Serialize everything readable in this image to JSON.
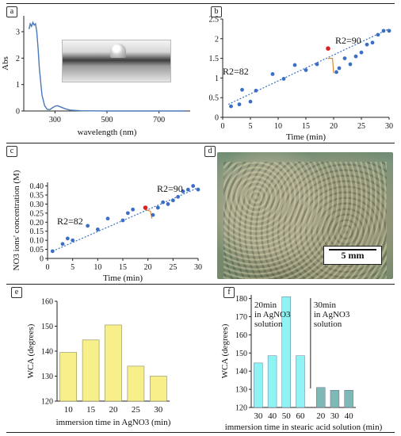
{
  "panels": {
    "a": {
      "tag": "a"
    },
    "b": {
      "tag": "b"
    },
    "c": {
      "tag": "c"
    },
    "d": {
      "tag": "d",
      "scale_label": "5 mm"
    },
    "e": {
      "tag": "e"
    },
    "f": {
      "tag": "f"
    }
  },
  "chart_data": [
    {
      "panel": "a",
      "type": "line",
      "xlabel": "wavelength (nm)",
      "ylabel": "Abs",
      "xticks": [
        300,
        500,
        700
      ],
      "yticks": [
        0,
        1,
        2,
        3
      ],
      "xlim": [
        180,
        820
      ],
      "ylim": [
        0,
        3.6
      ],
      "series": [
        {
          "color": "#4a78b8",
          "x": [
            200,
            205,
            210,
            215,
            220,
            225,
            230,
            235,
            240,
            250,
            260,
            270,
            280,
            290,
            300,
            310,
            320,
            340,
            360,
            400,
            500,
            600,
            700,
            800
          ],
          "y": [
            3.1,
            3.3,
            3.2,
            3.35,
            3.25,
            3.3,
            3.0,
            2.4,
            1.6,
            0.6,
            0.2,
            0.06,
            0.05,
            0.12,
            0.18,
            0.2,
            0.16,
            0.08,
            0.03,
            0.01,
            0.0,
            0.0,
            0.0,
            0.0
          ]
        }
      ]
    },
    {
      "panel": "b",
      "type": "scatter",
      "xlabel": "Time (min)",
      "ylabel": "Abs",
      "xticks": [
        0,
        5,
        10,
        15,
        20,
        25,
        30
      ],
      "yticks": [
        0,
        0.5,
        1,
        1.5,
        2,
        2.5
      ],
      "xlim": [
        0,
        30
      ],
      "ylim": [
        0,
        2.5
      ],
      "annotations": [
        "R2=82",
        "R2=90"
      ],
      "series": [
        {
          "color": "#3b6fc4",
          "x": [
            1.5,
            3,
            3.5,
            5,
            6,
            9,
            11,
            13,
            15,
            17,
            20.5,
            21,
            22,
            23,
            24,
            25,
            26,
            27,
            28,
            29,
            30
          ],
          "y": [
            0.28,
            0.33,
            0.7,
            0.4,
            0.68,
            1.1,
            0.98,
            1.33,
            1.2,
            1.35,
            1.15,
            1.25,
            1.5,
            1.35,
            1.55,
            1.65,
            1.85,
            1.9,
            2.1,
            2.2,
            2.2
          ]
        },
        {
          "color": "#e02020",
          "x": [
            19
          ],
          "y": [
            1.75
          ]
        }
      ],
      "fits": [
        {
          "color": "#3b6fc4",
          "x": [
            1,
            30
          ],
          "y": [
            0.33,
            2.25
          ]
        }
      ],
      "connector": {
        "color": "#e08a2a",
        "x": [
          19,
          19.8,
          20
        ],
        "y": [
          1.5,
          1.5,
          1.12
        ]
      }
    },
    {
      "panel": "c",
      "type": "scatter",
      "xlabel": "Time (min)",
      "ylabel": "NO3 ions' concentration (M)",
      "xticks": [
        0,
        5,
        10,
        15,
        20,
        25,
        30
      ],
      "yticks": [
        0,
        0.05,
        0.1,
        0.15,
        0.2,
        0.25,
        0.3,
        0.35,
        0.4
      ],
      "ytick_labels": [
        "0",
        "0.05",
        "0.10",
        "0.15",
        "0.20",
        "0.25",
        "0.30",
        "0.35",
        "0.40"
      ],
      "xlim": [
        0,
        30
      ],
      "ylim": [
        0,
        0.42
      ],
      "annotations": [
        "R2=82",
        "R2=90"
      ],
      "series": [
        {
          "color": "#3b6fc4",
          "x": [
            1,
            3,
            4,
            5,
            8,
            10,
            12,
            15,
            16,
            17,
            21,
            22,
            23,
            24,
            25,
            26,
            27,
            28,
            29,
            30
          ],
          "y": [
            0.04,
            0.08,
            0.11,
            0.1,
            0.18,
            0.16,
            0.22,
            0.21,
            0.25,
            0.27,
            0.24,
            0.28,
            0.31,
            0.3,
            0.32,
            0.34,
            0.37,
            0.38,
            0.4,
            0.38
          ]
        },
        {
          "color": "#e02020",
          "x": [
            19.5
          ],
          "y": [
            0.28
          ]
        }
      ],
      "fits": [
        {
          "color": "#3b6fc4",
          "x": [
            1,
            30
          ],
          "y": [
            0.04,
            0.39
          ]
        }
      ],
      "connector": {
        "color": "#e08a2a",
        "x": [
          19.5,
          20.5,
          20.8
        ],
        "y": [
          0.27,
          0.26,
          0.22
        ]
      }
    },
    {
      "panel": "e",
      "type": "bar",
      "xlabel": "immersion time in AgNO3 (min)",
      "ylabel": "WCA (degrees)",
      "categories": [
        "10",
        "15",
        "20",
        "25",
        "30"
      ],
      "values": [
        139.5,
        144.5,
        150.5,
        134,
        130
      ],
      "yticks": [
        120,
        130,
        140,
        150,
        160
      ],
      "ylim": [
        120,
        160
      ],
      "color": "#f7f08a"
    },
    {
      "panel": "f",
      "type": "bar",
      "xlabel": "immersion time in stearic acid solution (min)",
      "ylabel": "WCA (degrees)",
      "categories": [
        "30",
        "40",
        "50",
        "60",
        "20",
        "30",
        "40"
      ],
      "yticks": [
        120,
        130,
        140,
        150,
        160,
        170,
        180
      ],
      "ylim": [
        120,
        182
      ],
      "group_labels": [
        "20min in AgNO3 solution",
        "30min in AgNO3 solution"
      ],
      "series": [
        {
          "values": [
            144.5,
            148.5,
            181,
            148.5,
            null,
            null,
            null
          ],
          "color": "#8ff3f3"
        },
        {
          "values": [
            null,
            null,
            null,
            null,
            131,
            129.5,
            129.5
          ],
          "color": "#7fb9b5"
        }
      ]
    }
  ]
}
